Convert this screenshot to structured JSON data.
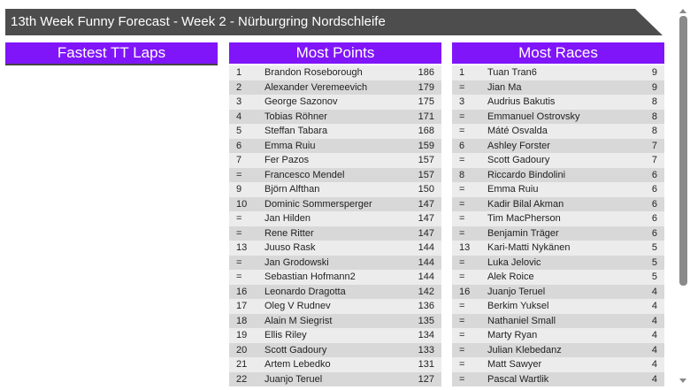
{
  "title": "13th Week Funny Forecast - Week 2 - Nürburgring Nordschleife",
  "panels": [
    {
      "title": "Fastest TT Laps",
      "rows": []
    },
    {
      "title": "Most Points",
      "rows": [
        [
          "1",
          "Brandon Roseborough",
          "186"
        ],
        [
          "2",
          "Alexander Veremeevich",
          "179"
        ],
        [
          "3",
          "George Sazonov",
          "175"
        ],
        [
          "4",
          "Tobias Röhner",
          "171"
        ],
        [
          "5",
          "Steffan Tabara",
          "168"
        ],
        [
          "6",
          "Emma Ruiu",
          "159"
        ],
        [
          "7",
          "Fer Pazos",
          "157"
        ],
        [
          "=",
          "Francesco Mendel",
          "157"
        ],
        [
          "9",
          "Björn Alfthan",
          "150"
        ],
        [
          "10",
          "Dominic Sommersperger",
          "147"
        ],
        [
          "=",
          "Jan Hilden",
          "147"
        ],
        [
          "=",
          "Rene Ritter",
          "147"
        ],
        [
          "13",
          "Juuso Rask",
          "144"
        ],
        [
          "=",
          "Jan Grodowski",
          "144"
        ],
        [
          "=",
          "Sebastian Hofmann2",
          "144"
        ],
        [
          "16",
          "Leonardo Dragotta",
          "142"
        ],
        [
          "17",
          "Oleg V Rudnev",
          "136"
        ],
        [
          "18",
          "Alain M Siegrist",
          "135"
        ],
        [
          "19",
          "Ellis Riley",
          "134"
        ],
        [
          "20",
          "Scott Gadoury",
          "133"
        ],
        [
          "21",
          "Artem Lebedko",
          "131"
        ],
        [
          "22",
          "Juanjo Teruel",
          "127"
        ]
      ]
    },
    {
      "title": "Most Races",
      "rows": [
        [
          "1",
          "Tuan Tran6",
          "9"
        ],
        [
          "=",
          "Jian Ma",
          "9"
        ],
        [
          "3",
          "Audrius Bakutis",
          "8"
        ],
        [
          "=",
          "Emmanuel Ostrovsky",
          "8"
        ],
        [
          "=",
          "Máté Osvalda",
          "8"
        ],
        [
          "6",
          "Ashley Forster",
          "7"
        ],
        [
          "=",
          "Scott Gadoury",
          "7"
        ],
        [
          "8",
          "Riccardo Bindolini",
          "6"
        ],
        [
          "=",
          "Emma Ruiu",
          "6"
        ],
        [
          "=",
          "Kadir Bilal Akman",
          "6"
        ],
        [
          "=",
          "Tim MacPherson",
          "6"
        ],
        [
          "=",
          "Benjamin Träger",
          "6"
        ],
        [
          "13",
          "Kari-Matti Nykänen",
          "5"
        ],
        [
          "=",
          "Luka Jelovic",
          "5"
        ],
        [
          "=",
          "Alek Roice",
          "5"
        ],
        [
          "16",
          "Juanjo Teruel",
          "4"
        ],
        [
          "=",
          "Berkim Yuksel",
          "4"
        ],
        [
          "=",
          "Nathaniel Small",
          "4"
        ],
        [
          "=",
          "Marty Ryan",
          "4"
        ],
        [
          "=",
          "Julian Klebedanz",
          "4"
        ],
        [
          "=",
          "Matt Sawyer",
          "4"
        ],
        [
          "=",
          "Pascal Wartlik",
          "4"
        ]
      ]
    }
  ],
  "colors": {
    "header": "#8015fa",
    "titlebar": "#4d4d4d"
  }
}
